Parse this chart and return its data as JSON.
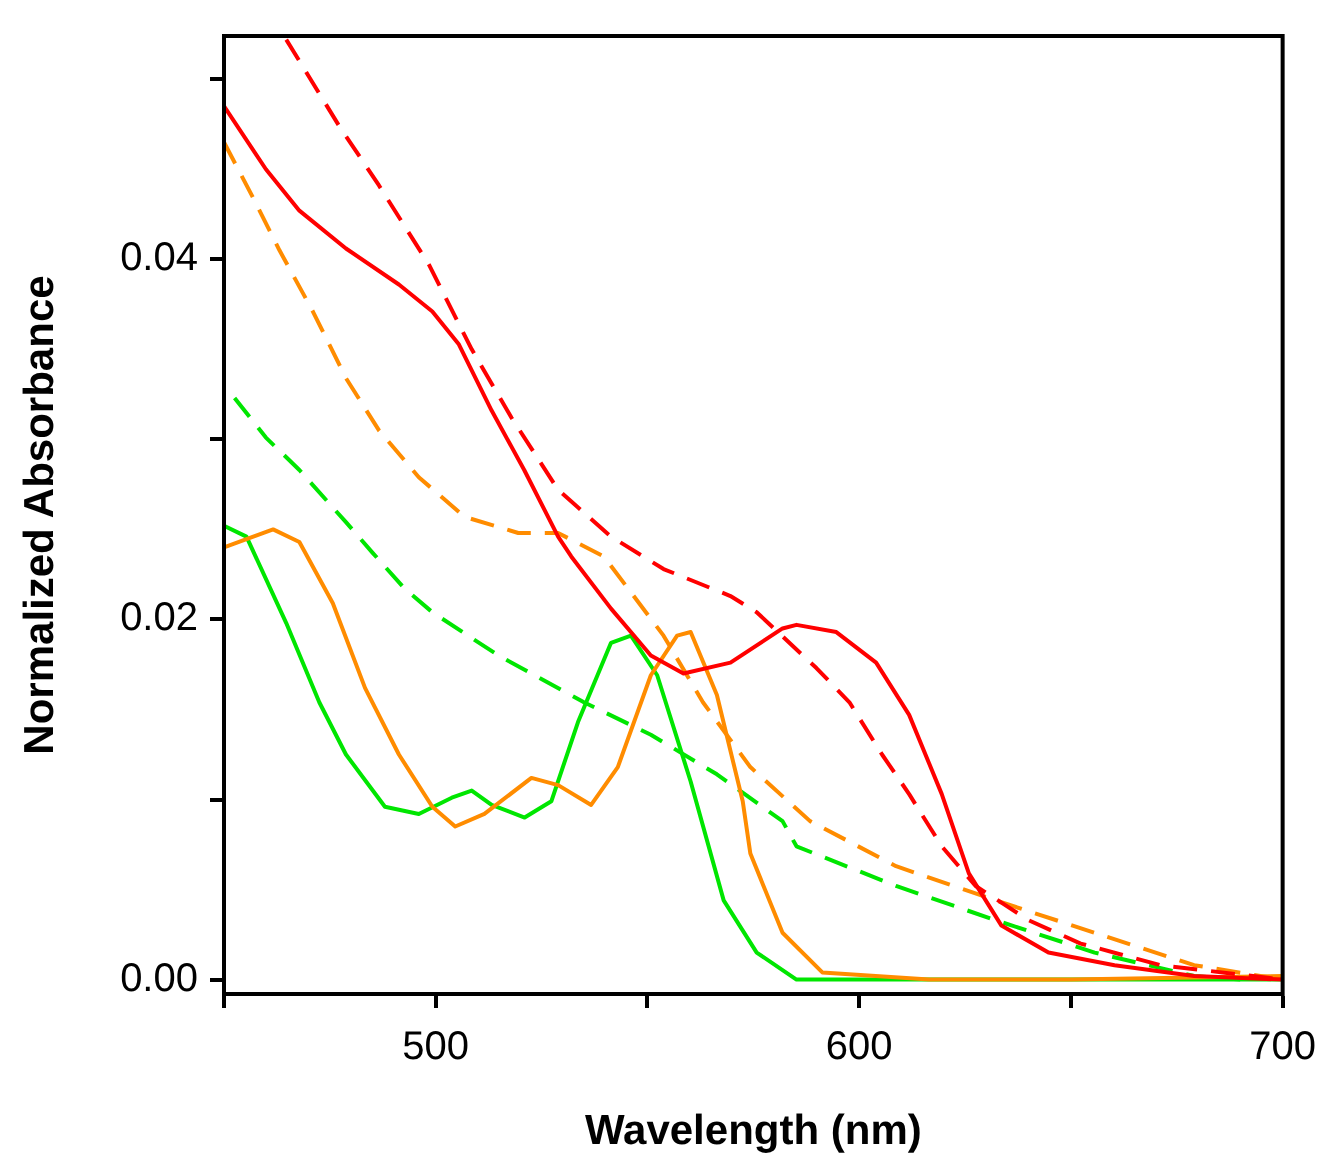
{
  "chart_data": {
    "type": "line",
    "xlabel": "Wavelength (nm)",
    "ylabel": "Normalized Absorbance",
    "xlim": [
      450,
      700
    ],
    "ylim": [
      -0.0008,
      0.0524
    ],
    "xticks": [
      {
        "value": 450,
        "label": null
      },
      500,
      {
        "value": 550,
        "label": null
      },
      600,
      {
        "value": 650,
        "label": null
      },
      700
    ],
    "yticks": [
      {
        "value": 0,
        "label": "0.00"
      },
      {
        "value": 0.01,
        "label": null
      },
      {
        "value": 0.02,
        "label": "0.02"
      },
      {
        "value": 0.03,
        "label": null
      },
      {
        "value": 0.04,
        "label": "0.04"
      },
      {
        "value": 0.05,
        "label": null
      }
    ],
    "grid": false,
    "legend": false,
    "marker": "none",
    "series": [
      {
        "color": "#ff0000",
        "line_style": "dashed",
        "x": [
          464.7,
          477.2,
          486.6,
          498.4,
          508.5,
          517.9,
          528.9,
          541.4,
          553.8,
          569.6,
          575.8,
          589.9,
          597.7,
          605.4,
          611.8,
          619.5,
          627.5,
          640,
          652.3,
          671.2,
          700
        ],
        "values": [
          0.0522,
          0.0474,
          0.0441,
          0.0397,
          0.035,
          0.0312,
          0.0272,
          0.0246,
          0.0228,
          0.0213,
          0.0204,
          0.0173,
          0.0154,
          0.0125,
          0.0103,
          0.0074,
          0.0052,
          0.0033,
          0.002,
          0.0008,
          0.0
        ]
      },
      {
        "color": "#ff0000",
        "line_style": "solid",
        "x": [
          450,
          459.9,
          467.8,
          478.8,
          491.3,
          499.2,
          505.4,
          513.2,
          520.9,
          528.9,
          532,
          541.4,
          550.8,
          558.5,
          569.6,
          581.9,
          585.2,
          594.6,
          604,
          611.8,
          619.5,
          625.9,
          633.6,
          644.7,
          660.3,
          679.1,
          700
        ],
        "values": [
          0.0485,
          0.045,
          0.0427,
          0.0406,
          0.0386,
          0.0371,
          0.0353,
          0.0316,
          0.0283,
          0.0246,
          0.0235,
          0.0206,
          0.018,
          0.017,
          0.0176,
          0.0195,
          0.0197,
          0.0193,
          0.0176,
          0.0147,
          0.0103,
          0.0059,
          0.003,
          0.0015,
          0.0008,
          0.0002,
          0.0
        ]
      },
      {
        "color": "#ff8c00",
        "line_style": "dashed",
        "x": [
          450,
          456.9,
          463.1,
          471,
          478.8,
          486.6,
          496,
          506.8,
          519.5,
          528.9,
          539.7,
          553.8,
          563.1,
          574.3,
          588.4,
          608.7,
          632.2,
          655.6,
          679.1,
          700
        ],
        "values": [
          0.0465,
          0.0434,
          0.0405,
          0.0371,
          0.0334,
          0.0305,
          0.0279,
          0.0257,
          0.0248,
          0.0248,
          0.0235,
          0.0191,
          0.0154,
          0.0118,
          0.0088,
          0.0063,
          0.0044,
          0.0026,
          0.0008,
          0.0
        ]
      },
      {
        "color": "#ff8c00",
        "line_style": "solid",
        "x": [
          450,
          461.6,
          467.8,
          475.7,
          483.3,
          491.3,
          499.2,
          504.6,
          511.5,
          522.6,
          528.9,
          536.7,
          543,
          550.8,
          557,
          560.2,
          566.4,
          572.5,
          574.3,
          581.9,
          591.3,
          616.5,
          650,
          700
        ],
        "values": [
          0.024,
          0.025,
          0.0243,
          0.0209,
          0.0162,
          0.0125,
          0.0096,
          0.0085,
          0.0092,
          0.0112,
          0.0108,
          0.0097,
          0.0118,
          0.0169,
          0.0191,
          0.0193,
          0.0158,
          0.0099,
          0.007,
          0.0026,
          0.0004,
          0.0,
          0.0,
          0.0002
        ]
      },
      {
        "color": "#00e600",
        "line_style": "dashed",
        "x": [
          452.5,
          459.9,
          467.8,
          478.8,
          485.1,
          492.7,
          499.2,
          514.8,
          535,
          550.8,
          566.4,
          581.9,
          585.2,
          608.7,
          632.2,
          655.6,
          679.1,
          690
        ],
        "values": [
          0.0323,
          0.0301,
          0.0283,
          0.0254,
          0.0237,
          0.0217,
          0.0204,
          0.018,
          0.0154,
          0.0136,
          0.0114,
          0.0088,
          0.0074,
          0.0052,
          0.0033,
          0.0015,
          0.0002,
          0.0
        ]
      },
      {
        "color": "#00e600",
        "line_style": "solid",
        "x": [
          450,
          455.3,
          464.7,
          472.5,
          478.8,
          488,
          496,
          503.8,
          508.5,
          513.2,
          521,
          527.3,
          533.6,
          541.4,
          546.1,
          552.3,
          560.2,
          568,
          575.8,
          585.2,
          616.5,
          650,
          700
        ],
        "values": [
          0.0252,
          0.0246,
          0.0198,
          0.0154,
          0.0125,
          0.0096,
          0.0092,
          0.0101,
          0.0105,
          0.0097,
          0.009,
          0.0099,
          0.0143,
          0.0187,
          0.0191,
          0.0169,
          0.011,
          0.0044,
          0.0015,
          0.0,
          0.0,
          0.0,
          0.0
        ]
      }
    ]
  }
}
